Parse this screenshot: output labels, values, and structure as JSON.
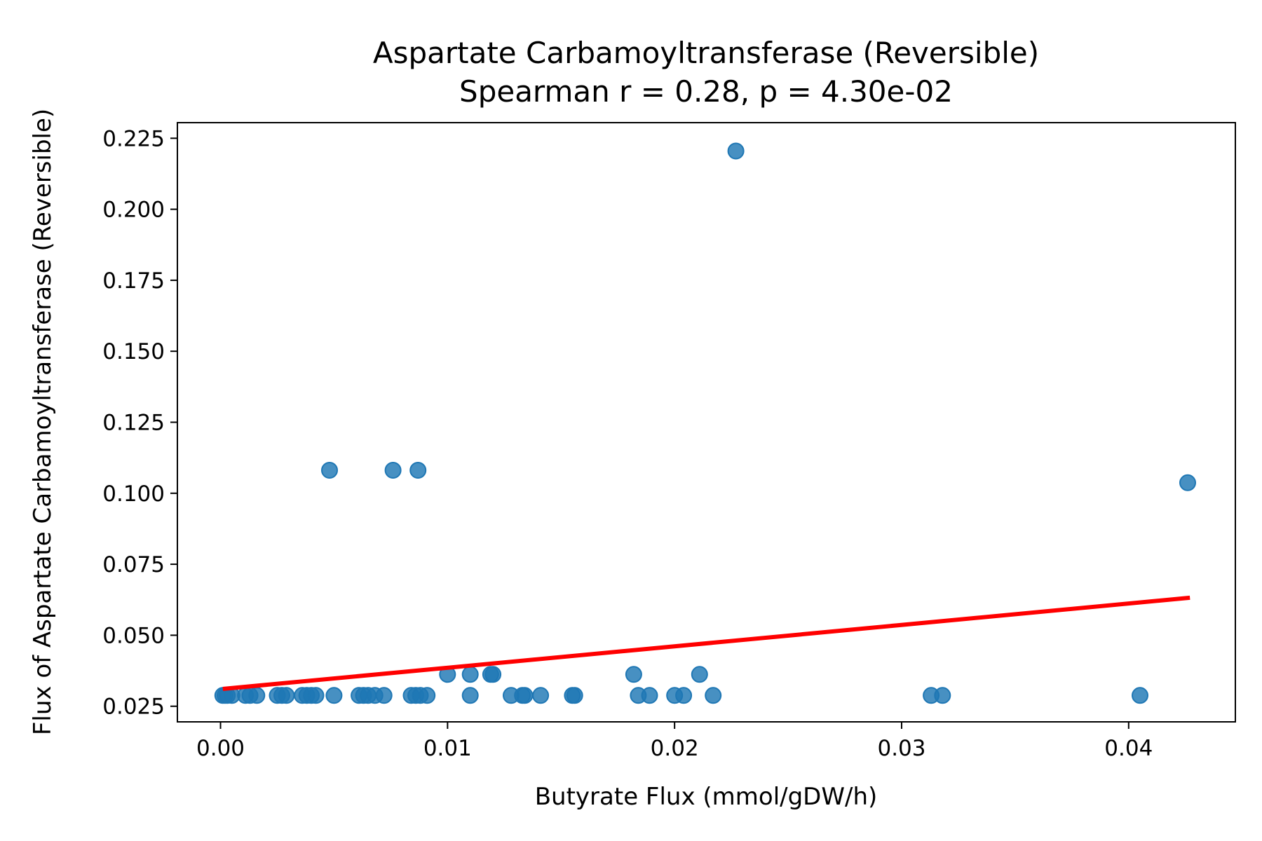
{
  "chart_data": {
    "type": "scatter",
    "title": "Aspartate Carbamoyltransferase (Reversible)",
    "subtitle": "Spearman r = 0.28, p = 4.30e-02",
    "xlabel": "Butyrate Flux (mmol/gDW/h)",
    "ylabel": "Flux of Aspartate Carbamoyltransferase (Reversible)",
    "xlim": [
      -0.0019,
      0.0447
    ],
    "ylim": [
      0.0195,
      0.2305
    ],
    "xticks": [
      {
        "value": 0.0,
        "label": "0.00"
      },
      {
        "value": 0.01,
        "label": "0.01"
      },
      {
        "value": 0.02,
        "label": "0.02"
      },
      {
        "value": 0.03,
        "label": "0.03"
      },
      {
        "value": 0.04,
        "label": "0.04"
      }
    ],
    "yticks": [
      {
        "value": 0.025,
        "label": "0.025"
      },
      {
        "value": 0.05,
        "label": "0.050"
      },
      {
        "value": 0.075,
        "label": "0.075"
      },
      {
        "value": 0.1,
        "label": "0.100"
      },
      {
        "value": 0.125,
        "label": "0.125"
      },
      {
        "value": 0.15,
        "label": "0.150"
      },
      {
        "value": 0.175,
        "label": "0.175"
      },
      {
        "value": 0.2,
        "label": "0.200"
      },
      {
        "value": 0.225,
        "label": "0.225"
      }
    ],
    "grid": false,
    "point_color": "#1f77b4",
    "trend_color": "#ff0000",
    "points": [
      {
        "x": 0.0001,
        "y": 0.0288
      },
      {
        "x": 0.0002,
        "y": 0.0288
      },
      {
        "x": 0.0003,
        "y": 0.0288
      },
      {
        "x": 0.0005,
        "y": 0.0288
      },
      {
        "x": 0.0011,
        "y": 0.0288
      },
      {
        "x": 0.0013,
        "y": 0.0288
      },
      {
        "x": 0.0016,
        "y": 0.0288
      },
      {
        "x": 0.0025,
        "y": 0.0288
      },
      {
        "x": 0.0027,
        "y": 0.0288
      },
      {
        "x": 0.0029,
        "y": 0.0288
      },
      {
        "x": 0.0036,
        "y": 0.0288
      },
      {
        "x": 0.0038,
        "y": 0.0288
      },
      {
        "x": 0.004,
        "y": 0.0288
      },
      {
        "x": 0.0042,
        "y": 0.0288
      },
      {
        "x": 0.005,
        "y": 0.0288
      },
      {
        "x": 0.0061,
        "y": 0.0288
      },
      {
        "x": 0.0063,
        "y": 0.0288
      },
      {
        "x": 0.0065,
        "y": 0.0288
      },
      {
        "x": 0.0068,
        "y": 0.0288
      },
      {
        "x": 0.0072,
        "y": 0.0288
      },
      {
        "x": 0.0084,
        "y": 0.0288
      },
      {
        "x": 0.0086,
        "y": 0.0288
      },
      {
        "x": 0.0088,
        "y": 0.0288
      },
      {
        "x": 0.0091,
        "y": 0.0288
      },
      {
        "x": 0.011,
        "y": 0.0288
      },
      {
        "x": 0.0128,
        "y": 0.0288
      },
      {
        "x": 0.0133,
        "y": 0.0288
      },
      {
        "x": 0.0134,
        "y": 0.0288
      },
      {
        "x": 0.0141,
        "y": 0.0288
      },
      {
        "x": 0.0155,
        "y": 0.0288
      },
      {
        "x": 0.0156,
        "y": 0.0288
      },
      {
        "x": 0.0184,
        "y": 0.0288
      },
      {
        "x": 0.0189,
        "y": 0.0288
      },
      {
        "x": 0.02,
        "y": 0.0288
      },
      {
        "x": 0.0204,
        "y": 0.0288
      },
      {
        "x": 0.0217,
        "y": 0.0288
      },
      {
        "x": 0.0313,
        "y": 0.0288
      },
      {
        "x": 0.0318,
        "y": 0.0288
      },
      {
        "x": 0.0405,
        "y": 0.0288
      },
      {
        "x": 0.01,
        "y": 0.0362
      },
      {
        "x": 0.011,
        "y": 0.0362
      },
      {
        "x": 0.0119,
        "y": 0.0362
      },
      {
        "x": 0.012,
        "y": 0.0362
      },
      {
        "x": 0.0182,
        "y": 0.0362
      },
      {
        "x": 0.0211,
        "y": 0.0362
      },
      {
        "x": 0.0048,
        "y": 0.1081
      },
      {
        "x": 0.0076,
        "y": 0.1081
      },
      {
        "x": 0.0087,
        "y": 0.1081
      },
      {
        "x": 0.0426,
        "y": 0.1037
      },
      {
        "x": 0.0227,
        "y": 0.2205
      }
    ],
    "trend_line": {
      "x": [
        0.0001,
        0.0427
      ],
      "y": [
        0.0311,
        0.0632
      ]
    }
  }
}
